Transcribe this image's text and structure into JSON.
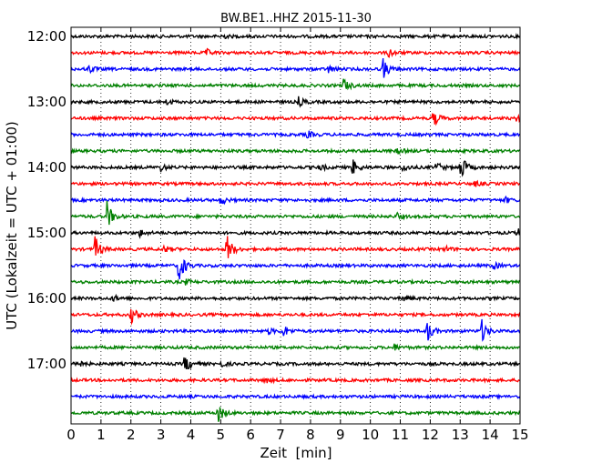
{
  "chart_data": {
    "type": "line",
    "title": "BW.BE1..HHZ 2015-11-30",
    "xlabel": "Zeit  [min]",
    "ylabel": "UTC (Lokalzeit = UTC + 01:00)",
    "xlim": [
      0,
      15
    ],
    "x_ticks": [
      "0",
      "1",
      "2",
      "3",
      "4",
      "5",
      "6",
      "7",
      "8",
      "9",
      "10",
      "11",
      "12",
      "13",
      "14",
      "15"
    ],
    "y_ticks": [
      "12:00",
      "13:00",
      "14:00",
      "15:00",
      "16:00",
      "17:00"
    ],
    "grid": true,
    "trace_colors": [
      "#000000",
      "#ff0000",
      "#0000ff",
      "#008000"
    ],
    "traces": [
      {
        "start": "12:00",
        "events": [
          [
            5.0,
            0.3
          ]
        ]
      },
      {
        "start": "12:15",
        "events": [
          [
            4.5,
            0.4
          ],
          [
            10.6,
            0.5
          ]
        ]
      },
      {
        "start": "12:30",
        "events": [
          [
            0.6,
            0.4
          ],
          [
            8.6,
            0.4
          ],
          [
            10.4,
            1.3
          ]
        ]
      },
      {
        "start": "12:45",
        "events": [
          [
            9.1,
            0.8
          ]
        ]
      },
      {
        "start": "13:00",
        "events": [
          [
            3.2,
            0.3
          ],
          [
            7.6,
            0.5
          ]
        ]
      },
      {
        "start": "13:15",
        "events": [
          [
            12.1,
            0.9
          ],
          [
            14.9,
            0.4
          ]
        ]
      },
      {
        "start": "13:30",
        "events": [
          [
            7.9,
            0.4
          ]
        ]
      },
      {
        "start": "13:45",
        "events": [
          [
            10.9,
            0.3
          ]
        ]
      },
      {
        "start": "14:00",
        "events": [
          [
            3.0,
            0.4
          ],
          [
            8.3,
            0.4
          ],
          [
            9.4,
            0.9
          ],
          [
            11.1,
            0.5
          ],
          [
            12.2,
            0.6
          ],
          [
            13.0,
            1.6
          ]
        ]
      },
      {
        "start": "14:15",
        "events": [
          [
            13.5,
            0.3
          ]
        ]
      },
      {
        "start": "14:30",
        "events": [
          [
            5.0,
            0.5
          ],
          [
            14.5,
            0.3
          ]
        ]
      },
      {
        "start": "14:45",
        "events": [
          [
            1.2,
            1.6
          ],
          [
            10.9,
            0.3
          ]
        ]
      },
      {
        "start": "15:00",
        "events": [
          [
            2.3,
            0.4
          ],
          [
            14.9,
            0.5
          ]
        ]
      },
      {
        "start": "15:15",
        "events": [
          [
            0.8,
            1.4
          ],
          [
            3.1,
            0.4
          ],
          [
            5.2,
            1.8
          ],
          [
            12.5,
            0.3
          ]
        ]
      },
      {
        "start": "15:30",
        "events": [
          [
            3.6,
            2.0
          ],
          [
            14.1,
            0.4
          ]
        ]
      },
      {
        "start": "15:45",
        "events": [
          [
            3.8,
            0.3
          ]
        ]
      },
      {
        "start": "16:00",
        "events": [
          [
            1.4,
            0.3
          ],
          [
            11.1,
            0.4
          ]
        ]
      },
      {
        "start": "16:15",
        "events": [
          [
            2.0,
            1.0
          ]
        ]
      },
      {
        "start": "16:30",
        "events": [
          [
            6.6,
            0.3
          ],
          [
            7.1,
            0.6
          ],
          [
            11.9,
            1.2
          ],
          [
            13.7,
            1.4
          ]
        ]
      },
      {
        "start": "16:45",
        "events": [
          [
            10.8,
            0.3
          ]
        ]
      },
      {
        "start": "17:00",
        "events": [
          [
            0.1,
            0.8
          ],
          [
            3.8,
            1.1
          ],
          [
            5.0,
            0.3
          ]
        ]
      },
      {
        "start": "17:15",
        "events": [
          [
            6.5,
            0.3
          ]
        ]
      },
      {
        "start": "17:30",
        "events": []
      },
      {
        "start": "17:45",
        "events": [
          [
            4.9,
            1.1
          ]
        ]
      }
    ]
  }
}
